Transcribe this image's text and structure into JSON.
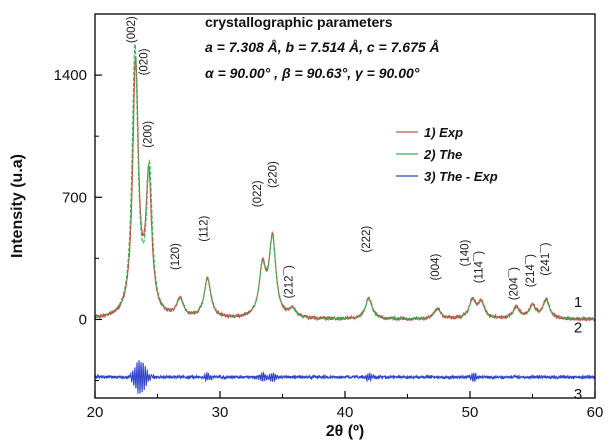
{
  "chart_data": {
    "type": "line",
    "xlabel": "2θ (º)",
    "ylabel": "Intensity (u.a)",
    "xlim": [
      20,
      60
    ],
    "ylim": [
      -450,
      1750
    ],
    "x_ticks": [
      20,
      30,
      40,
      50,
      60
    ],
    "y_ticks": [
      0,
      700,
      1400
    ],
    "grid": false,
    "legend_position": "top-right",
    "series": [
      {
        "name": "1) Exp",
        "color": "#c0504d",
        "label_number": "1",
        "peaks": [
          {
            "x": 23.25,
            "y": 1450
          },
          {
            "x": 24.3,
            "y": 780
          },
          {
            "x": 26.8,
            "y": 105
          },
          {
            "x": 29.0,
            "y": 230
          },
          {
            "x": 33.4,
            "y": 280
          },
          {
            "x": 34.2,
            "y": 450
          },
          {
            "x": 35.8,
            "y": 50
          },
          {
            "x": 41.9,
            "y": 120
          },
          {
            "x": 47.4,
            "y": 60
          },
          {
            "x": 50.2,
            "y": 105
          },
          {
            "x": 50.9,
            "y": 90
          },
          {
            "x": 53.7,
            "y": 65
          },
          {
            "x": 55.0,
            "y": 75
          },
          {
            "x": 56.1,
            "y": 110
          }
        ]
      },
      {
        "name": "2) The",
        "color": "#2fb84a",
        "label_number": "2",
        "peaks": [
          {
            "x": 23.2,
            "y": 1530
          },
          {
            "x": 24.35,
            "y": 820
          },
          {
            "x": 26.8,
            "y": 100
          },
          {
            "x": 29.0,
            "y": 220
          },
          {
            "x": 33.4,
            "y": 270
          },
          {
            "x": 34.2,
            "y": 440
          },
          {
            "x": 35.8,
            "y": 45
          },
          {
            "x": 41.9,
            "y": 115
          },
          {
            "x": 47.4,
            "y": 55
          },
          {
            "x": 50.2,
            "y": 100
          },
          {
            "x": 50.9,
            "y": 85
          },
          {
            "x": 53.7,
            "y": 60
          },
          {
            "x": 55.0,
            "y": 70
          },
          {
            "x": 56.1,
            "y": 105
          }
        ]
      },
      {
        "name": "3) The - Exp",
        "color": "#3344cc",
        "label_number": "3",
        "baseline": -330,
        "feature_range": [
          22.8,
          24.8
        ]
      }
    ],
    "peak_labels": [
      {
        "text": "(002)",
        "x": 23.2,
        "y": 1660,
        "rotated": true
      },
      {
        "text": "(020)",
        "x": 24.2,
        "y": 1475,
        "rotated": true
      },
      {
        "text": "(200)",
        "x": 24.5,
        "y": 1060,
        "rotated": true
      },
      {
        "text": "(120)",
        "x": 26.7,
        "y": 360,
        "rotated": true
      },
      {
        "text": "(112)",
        "x": 29.0,
        "y": 520,
        "rotated": true
      },
      {
        "text": "(022)",
        "x": 33.3,
        "y": 720,
        "rotated": true
      },
      {
        "text": "(220)",
        "x": 34.5,
        "y": 830,
        "rotated": true
      },
      {
        "text": "(212¯)",
        "x": 35.8,
        "y": 215,
        "rotated": true
      },
      {
        "text": "(222)",
        "x": 42.0,
        "y": 460,
        "rotated": true
      },
      {
        "text": "(004)",
        "x": 47.5,
        "y": 300,
        "rotated": true
      },
      {
        "text": "(140)",
        "x": 49.9,
        "y": 380,
        "rotated": true
      },
      {
        "text": "(114¯)",
        "x": 51.0,
        "y": 300,
        "rotated": true
      },
      {
        "text": "(204¯)",
        "x": 53.8,
        "y": 205,
        "rotated": true
      },
      {
        "text": "(214¯)",
        "x": 55.1,
        "y": 280,
        "rotated": true
      },
      {
        "text": "(241¯)",
        "x": 56.3,
        "y": 345,
        "rotated": true
      }
    ],
    "annotations": {
      "title": "crystallographic parameters",
      "line1": "a = 7.308 Å, b = 7.514 Å, c = 7.675 Å",
      "line2": "α = 90.00° , β = 90.63°, γ = 90.00°"
    }
  }
}
